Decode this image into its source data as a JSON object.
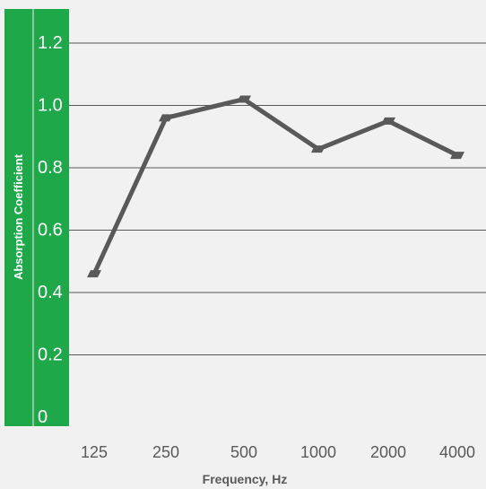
{
  "chart_data": {
    "type": "line",
    "title": "",
    "xlabel": "Frequency, Hz",
    "ylabel": "Absorption Coefficient",
    "categories": [
      "125",
      "250",
      "500",
      "1000",
      "2000",
      "4000"
    ],
    "y_tick_labels": [
      "0",
      "0.2",
      "0.4",
      "0.6",
      "0.8",
      "1.0",
      "1.2"
    ],
    "ylim": [
      0,
      1.2
    ],
    "grid": true,
    "legend": "none",
    "series": [
      {
        "values": [
          0.46,
          0.96,
          1.02,
          0.86,
          0.95,
          0.84
        ]
      }
    ],
    "colors": {
      "background": "#f1f1f2",
      "axis_band": "#1fa84a",
      "y_tick_text": "#ffffff",
      "line": "#595959",
      "grid": "#595959",
      "x_tick_text": "#595959"
    }
  }
}
